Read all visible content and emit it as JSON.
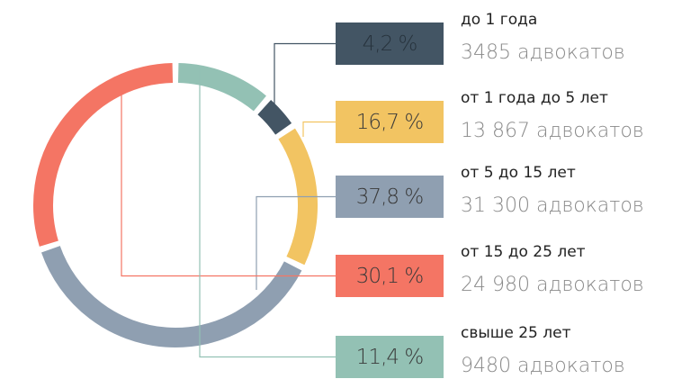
{
  "chart_data": {
    "type": "donut",
    "categories": [
      "до 1 года",
      "от 1 года до 5 лет",
      "от 5 до 15 лет",
      "от 15 до 25 лет",
      "свыше 25 лет"
    ],
    "values": [
      4.2,
      16.7,
      37.8,
      30.1,
      11.4
    ],
    "value_labels": [
      "4,2 %",
      "16,7 %",
      "37,8 %",
      "30,1 %",
      "11,4 %"
    ],
    "details": [
      "3485 адвокатов",
      "13 867 адвокатов",
      "31 300 адвокатов",
      "24 980 адвокатов",
      "9480 адвокатов"
    ],
    "colors": [
      "#435564",
      "#f2c462",
      "#8f9fb1",
      "#f47564",
      "#93c1b4"
    ]
  }
}
